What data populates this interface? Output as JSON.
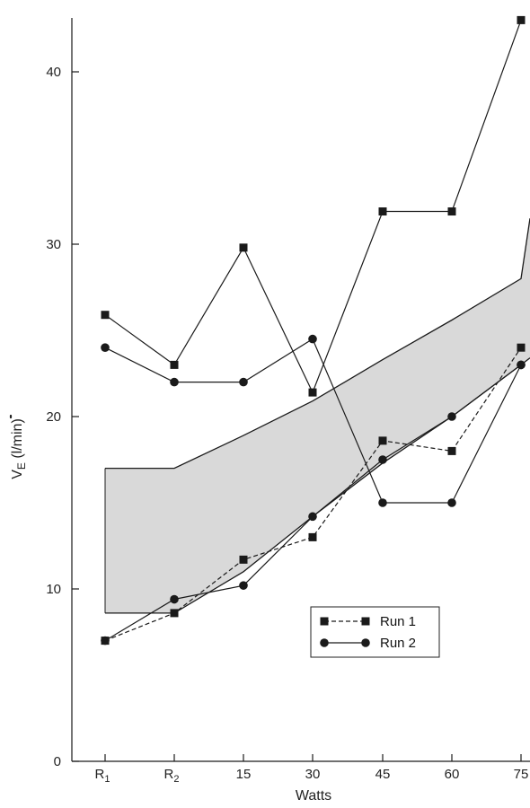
{
  "chart_data": {
    "type": "line",
    "xlabel": "Watts",
    "ylabel": {
      "main": "V",
      "sub": "E",
      "unit": " (l/min)"
    },
    "categories": [
      {
        "main": "R",
        "sub": "1"
      },
      {
        "main": "R",
        "sub": "2"
      },
      {
        "main": "15",
        "sub": ""
      },
      {
        "main": "30",
        "sub": ""
      },
      {
        "main": "45",
        "sub": ""
      },
      {
        "main": "60",
        "sub": ""
      },
      {
        "main": "75",
        "sub": ""
      }
    ],
    "ylim": [
      0,
      43
    ],
    "yticks": [
      0,
      10,
      20,
      30,
      40
    ],
    "band": {
      "upper": [
        17,
        17,
        18.9,
        20.9,
        23.3,
        25.6,
        28.0,
        31.5
      ],
      "lower": [
        8.6,
        8.6,
        11.0,
        14.2,
        17.3,
        20.0,
        23.0,
        23.4
      ],
      "x_extended_to_edge": true
    },
    "series": [
      {
        "name": "Run 1",
        "style": "dashed",
        "marker": "square",
        "values": [
          7.0,
          8.6,
          11.7,
          13.0,
          18.6,
          18.0,
          24.0
        ]
      },
      {
        "name": "Run 2",
        "style": "solid",
        "marker": "circle",
        "values": [
          7.0,
          9.4,
          10.2,
          14.2,
          17.5,
          20.0,
          23.0
        ]
      },
      {
        "name": "",
        "style": "solid",
        "marker": "square",
        "values": [
          25.9,
          23.0,
          29.8,
          21.4,
          31.9,
          31.9,
          43.0
        ]
      },
      {
        "name": "",
        "style": "solid",
        "marker": "circle",
        "values": [
          24.0,
          22.0,
          22.0,
          24.5,
          15.0,
          15.0,
          23.0
        ]
      }
    ],
    "legend_position": "bottom-right",
    "colors": {
      "line": "#1a1a1a",
      "band": "#d9d9d9"
    }
  }
}
